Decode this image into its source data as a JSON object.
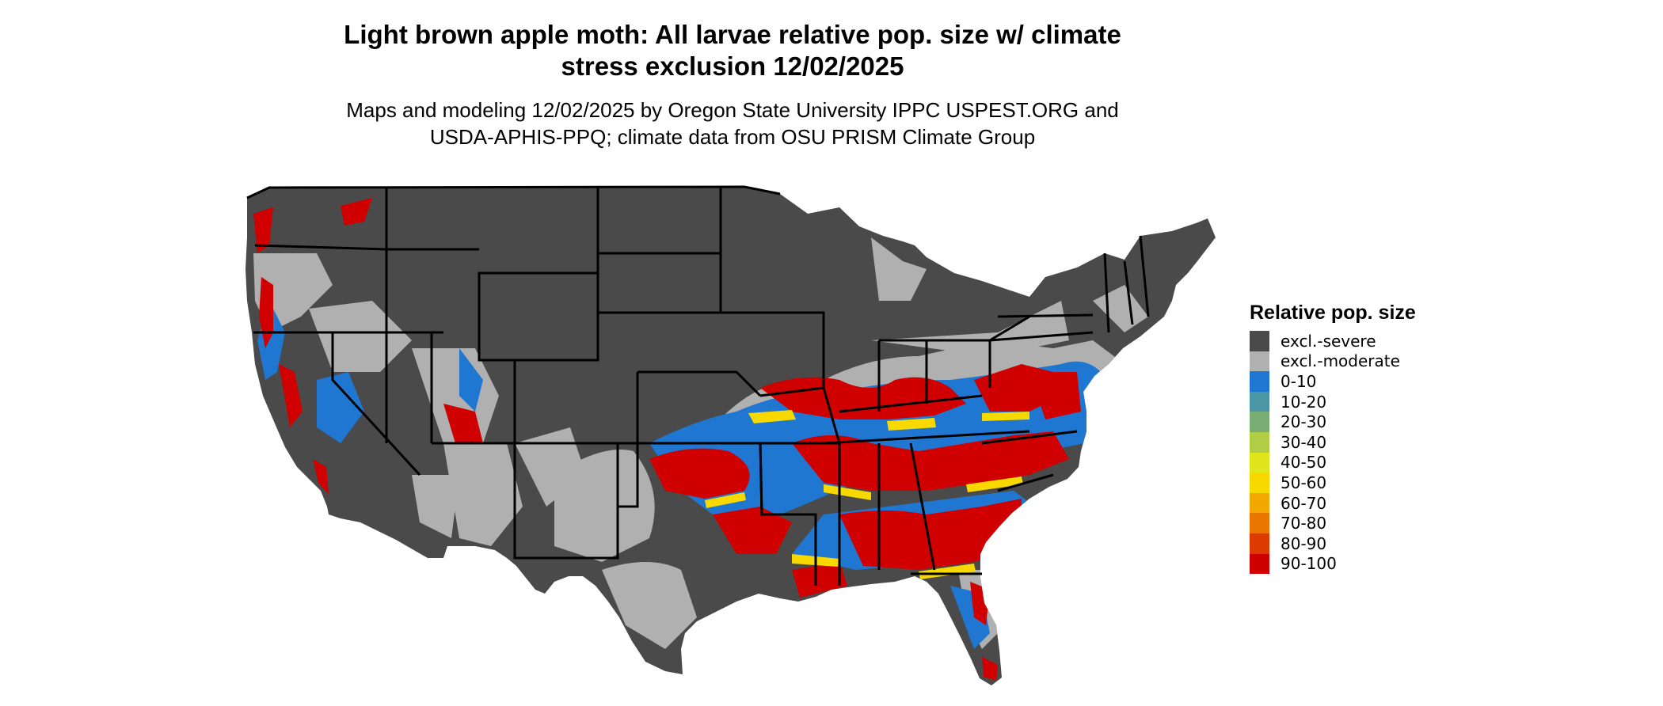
{
  "title_line1": "Light brown apple moth: All larvae relative pop. size w/ climate",
  "title_line2": "stress exclusion 12/02/2025",
  "subtitle_line1": "Maps and modeling 12/02/2025 by Oregon State University IPPC USPEST.ORG and",
  "subtitle_line2": "USDA-APHIS-PPQ; climate data from OSU PRISM Climate Group",
  "legend": {
    "title": "Relative pop. size",
    "items": [
      {
        "label": "excl.-severe",
        "color": "#4a4a4a"
      },
      {
        "label": "excl.-moderate",
        "color": "#b0b0b0"
      },
      {
        "label": "0-10",
        "color": "#1f77d2"
      },
      {
        "label": "10-20",
        "color": "#4a96a4"
      },
      {
        "label": "20-30",
        "color": "#7aad73"
      },
      {
        "label": "30-40",
        "color": "#b0cd45"
      },
      {
        "label": "40-50",
        "color": "#e0e61c"
      },
      {
        "label": "50-60",
        "color": "#f7d900"
      },
      {
        "label": "60-70",
        "color": "#f2a800"
      },
      {
        "label": "70-80",
        "color": "#ea7600"
      },
      {
        "label": "80-90",
        "color": "#dd3a00"
      },
      {
        "label": "90-100",
        "color": "#d00000"
      }
    ]
  },
  "map": {
    "region": "contiguous-united-states",
    "colors": {
      "severe": "#4a4a4a",
      "moderate": "#b0b0b0",
      "low": "#1f77d2",
      "high": "#d00000",
      "mid": "#f7d900",
      "border": "#000000"
    }
  }
}
